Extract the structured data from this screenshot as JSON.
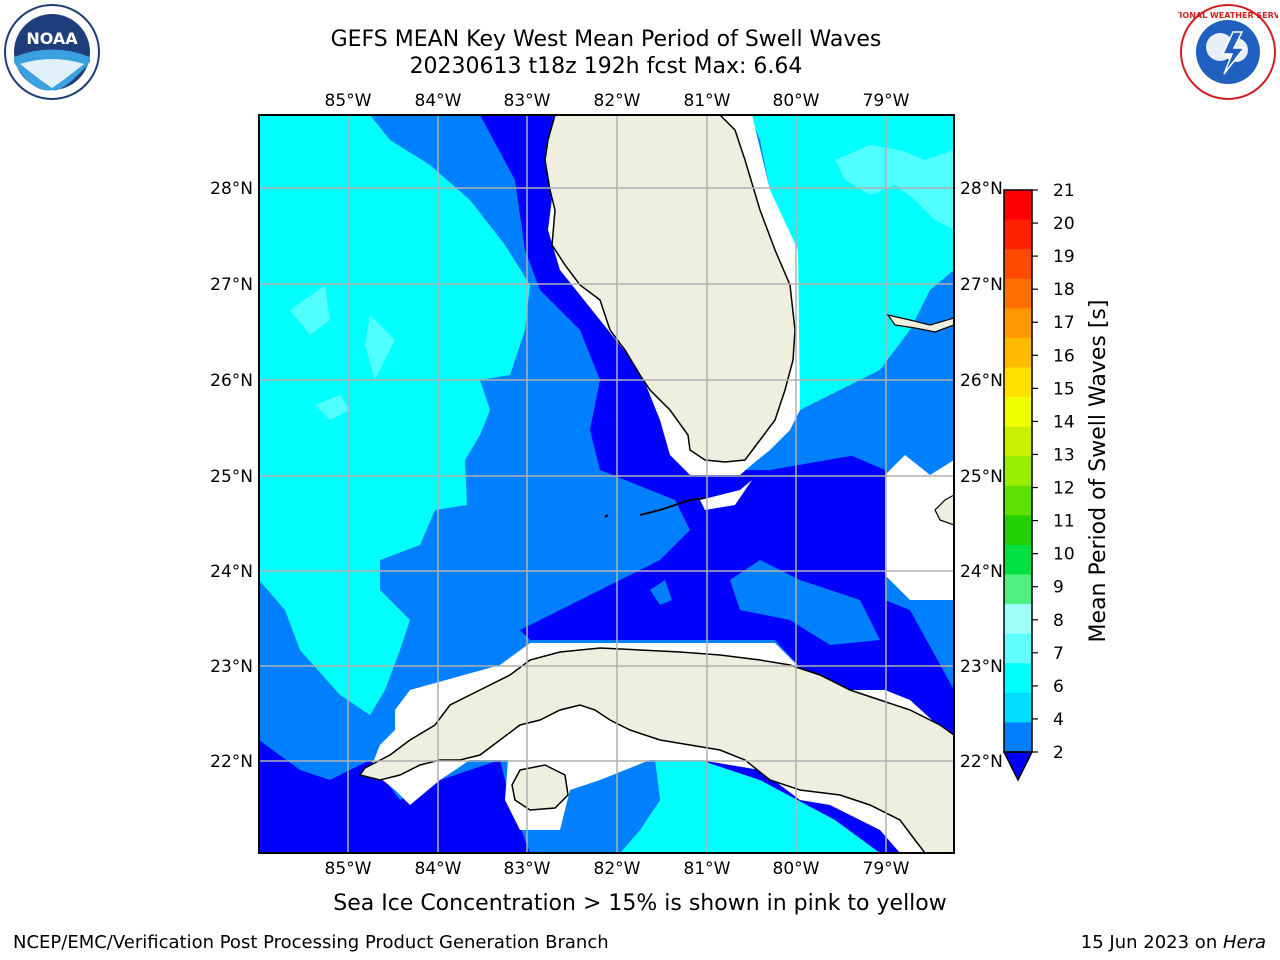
{
  "header": {
    "title_line1": "GEFS MEAN Key West Mean Period of Swell Waves",
    "title_line2": "20230613 t18z 192h fcst   Max: 6.64"
  },
  "logos": {
    "left": "noaa-logo",
    "right": "national-weather-service-logo",
    "left_text": "NOAA",
    "right_text": "NATIONAL WEATHER SERVICE"
  },
  "axes": {
    "lon_labels": [
      "85°W",
      "84°W",
      "83°W",
      "82°W",
      "81°W",
      "80°W",
      "79°W"
    ],
    "lat_labels": [
      "28°N",
      "27°N",
      "26°N",
      "25°N",
      "24°N",
      "23°N",
      "22°N"
    ]
  },
  "colorbar": {
    "label": "Mean Period of Swell Waves [s]",
    "ticks": [
      "21",
      "20",
      "19",
      "18",
      "17",
      "16",
      "15",
      "14",
      "13",
      "12",
      "11",
      "10",
      "9",
      "8",
      "7",
      "6",
      "4",
      "2"
    ],
    "colors": [
      "#ff0000",
      "#ff2000",
      "#ff4a00",
      "#ff7000",
      "#ff9800",
      "#ffbb00",
      "#ffe000",
      "#f0ff00",
      "#c8f000",
      "#98ee00",
      "#60e000",
      "#20d000",
      "#00e040",
      "#50f080",
      "#a0fff8",
      "#60ffff",
      "#00ffff",
      "#00dcff",
      "#0080ff",
      "#0000ff"
    ]
  },
  "footer": {
    "ice_note": "Sea Ice Concentration > 15% is shown in pink to yellow",
    "branch": "NCEP/EMC/Verification Post Processing Product Generation Branch",
    "date_prefix": "15 Jun 2023 on ",
    "date_host": "Hera"
  }
}
